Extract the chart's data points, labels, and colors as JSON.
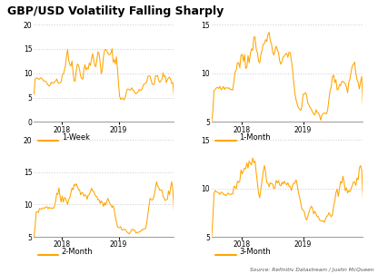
{
  "title": "GBP/USD Volatility Falling Sharply",
  "source": "Source: Refinitiv Datastream / Justin McQueen",
  "line_color": "#FFA500",
  "background_color": "#ffffff",
  "panels": [
    {
      "label": "1-Week",
      "ylim": [
        0,
        20
      ],
      "yticks": [
        0,
        5,
        10,
        15,
        20
      ],
      "grid_ticks": [
        5,
        10,
        15,
        20
      ]
    },
    {
      "label": "1-Month",
      "ylim": [
        5,
        15
      ],
      "yticks": [
        5,
        10,
        15
      ],
      "grid_ticks": [
        10,
        15
      ]
    },
    {
      "label": "2-Month",
      "ylim": [
        5,
        20
      ],
      "yticks": [
        5,
        10,
        15,
        20
      ],
      "grid_ticks": [
        10,
        15,
        20
      ]
    },
    {
      "label": "3-Month",
      "ylim": [
        5,
        15
      ],
      "yticks": [
        5,
        10,
        15
      ],
      "grid_ticks": [
        10,
        15
      ]
    }
  ]
}
